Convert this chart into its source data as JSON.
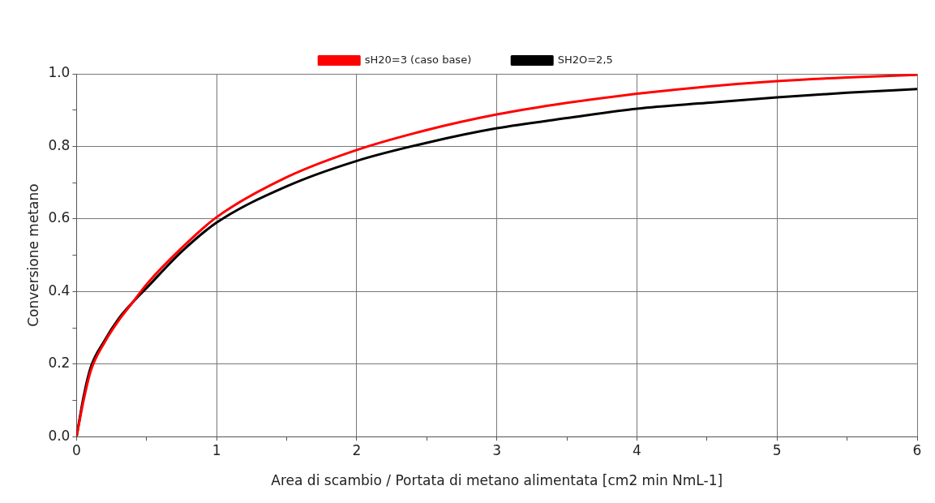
{
  "chart_data": {
    "type": "line",
    "xlabel": "Area di scambio / Portata di metano alimentata [cm2 min NmL-1]",
    "ylabel": "Conversione metano",
    "xlim": [
      0,
      6
    ],
    "xticks": [
      0,
      {
        "value": 0.5,
        "label": null
      },
      1,
      {
        "value": 1.5,
        "label": null
      },
      2,
      {
        "value": 2.5,
        "label": null
      },
      3,
      {
        "value": 3.5,
        "label": null
      },
      4,
      {
        "value": 4.5,
        "label": null
      },
      5,
      {
        "value": 5.5,
        "label": null
      },
      6
    ],
    "ylim": [
      0,
      1
    ],
    "yticks": [
      {
        "value": 0,
        "label": "0.0"
      },
      {
        "value": 0.1,
        "label": null
      },
      {
        "value": 0.2,
        "label": "0.2"
      },
      {
        "value": 0.3,
        "label": null
      },
      {
        "value": 0.4,
        "label": "0.4"
      },
      {
        "value": 0.5,
        "label": null
      },
      {
        "value": 0.6,
        "label": "0.6"
      },
      {
        "value": 0.7,
        "label": null
      },
      {
        "value": 0.8,
        "label": "0.8"
      },
      {
        "value": 0.9,
        "label": null
      },
      {
        "value": 1,
        "label": "1.0"
      }
    ],
    "x": [
      0,
      0.05,
      0.1,
      0.2,
      0.3,
      0.4,
      0.5,
      0.75,
      1,
      1.5,
      2,
      2.5,
      3,
      3.5,
      4,
      4.5,
      5,
      5.5,
      6
    ],
    "series": [
      {
        "name": "sH20=3 (caso base)",
        "color": "#ff0000",
        "values": [
          0,
          0.1,
          0.18,
          0.26,
          0.32,
          0.37,
          0.42,
          0.52,
          0.605,
          0.715,
          0.79,
          0.845,
          0.888,
          0.92,
          0.945,
          0.965,
          0.98,
          0.99,
          0.997
        ]
      },
      {
        "name": "SH2O=2,5",
        "color": "#000000",
        "values": [
          0,
          0.11,
          0.19,
          0.265,
          0.325,
          0.37,
          0.41,
          0.51,
          0.59,
          0.69,
          0.76,
          0.81,
          0.85,
          0.878,
          0.904,
          0.92,
          0.935,
          0.948,
          0.958
        ]
      }
    ],
    "grid": true,
    "legend": "top",
    "marker": "none",
    "line_style": "solid"
  }
}
